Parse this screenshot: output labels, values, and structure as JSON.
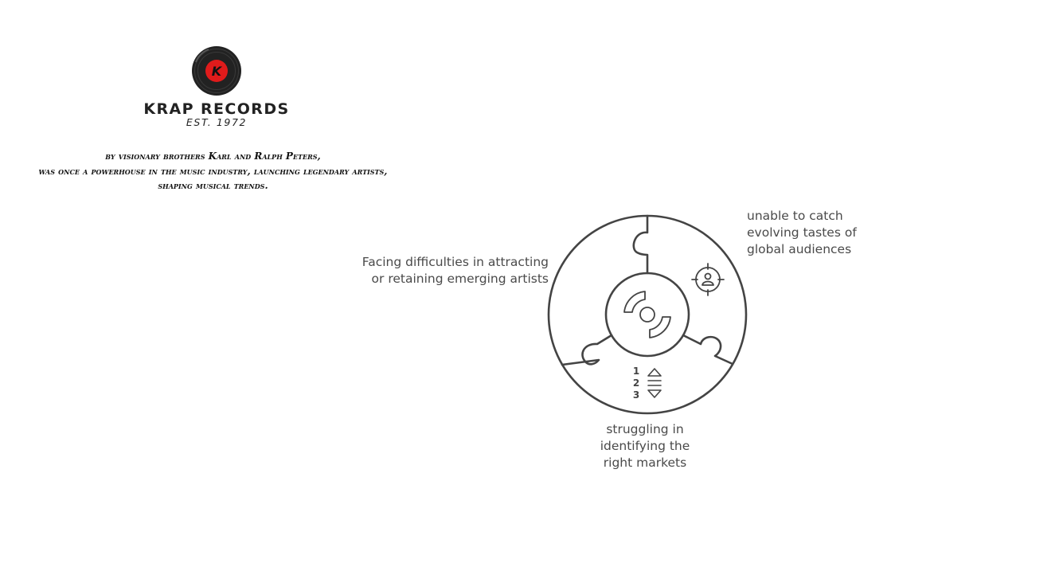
{
  "brand": {
    "logo_letter": "K",
    "name": "KRAP RECORDS",
    "established": "EST. 1972",
    "logo_icon": "vinyl-record-icon",
    "colors": {
      "record": "#222222",
      "label": "#e01b1b"
    }
  },
  "intro": {
    "lines": [
      "by visionary brothers Karl and Ralph Peters,",
      "was once a powerhouse in the music industry, launching legendary artists,",
      "shaping musical trends."
    ]
  },
  "diagram": {
    "center_icon": "vinyl-disc-icon",
    "segments": [
      {
        "icon": "target-audience-icon",
        "lines": [
          "unable to catch",
          "evolving tastes of",
          "global audiences"
        ]
      },
      {
        "icon": "ranking-icon",
        "rank_numbers": [
          "1",
          "2",
          "3"
        ],
        "lines": [
          "struggling in",
          "identifying the",
          "right markets"
        ]
      },
      {
        "icon": "artist-icon",
        "lines": [
          "Facing difficulties in attracting",
          "or retaining emerging artists"
        ]
      }
    ],
    "colors": {
      "stroke": "#444444",
      "text": "#4a4a4a"
    }
  }
}
